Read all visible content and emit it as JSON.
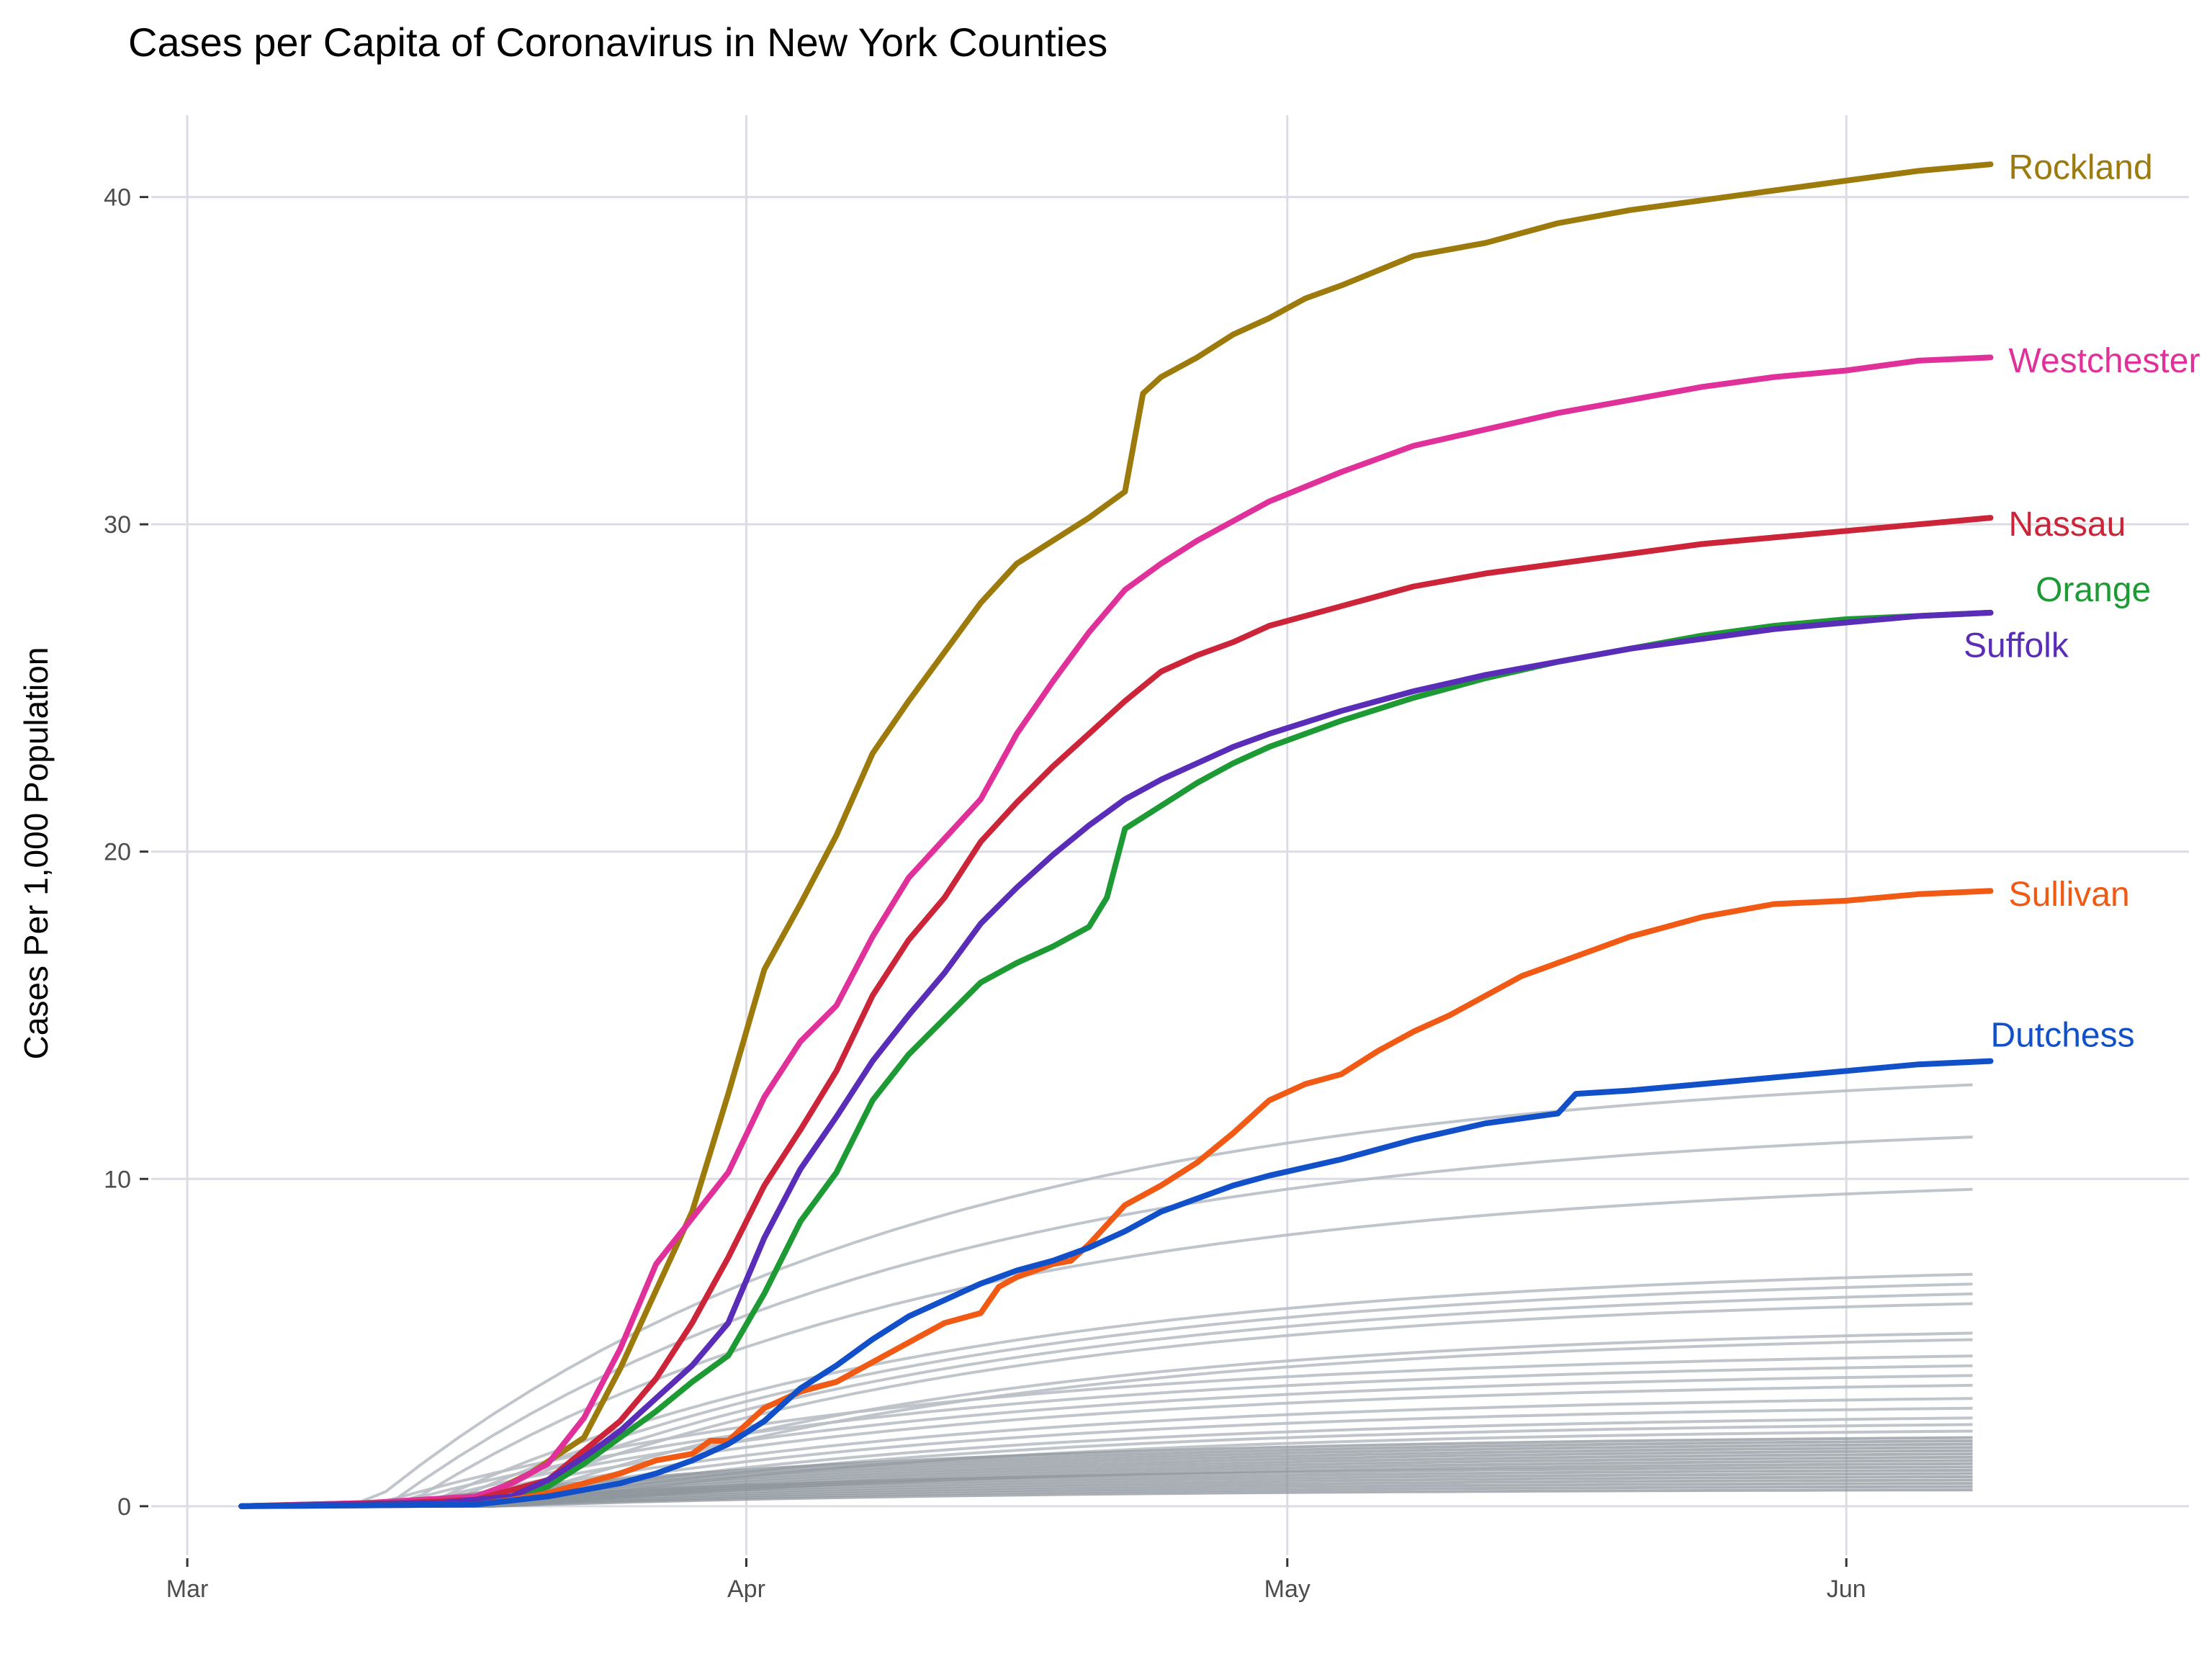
{
  "chart_data": {
    "type": "line",
    "title": "Cases per Capita of Coronavirus in New York Counties",
    "xlabel": "",
    "ylabel": "Cases Per 1,000 Population",
    "x_axis": {
      "type": "day-of-year",
      "range": [
        58,
        171
      ],
      "ticks": [
        {
          "value": 60,
          "label": "Mar"
        },
        {
          "value": 91,
          "label": "Apr"
        },
        {
          "value": 121,
          "label": "May"
        },
        {
          "value": 152,
          "label": "Jun"
        }
      ]
    },
    "ylim": [
      -1.5,
      42.5
    ],
    "y_ticks": [
      0,
      10,
      20,
      30,
      40
    ],
    "grid": true,
    "legend": "none",
    "highlighted_series": [
      {
        "name": "Rockland",
        "color": "#9c7a0c",
        "points": [
          [
            63,
            0
          ],
          [
            70,
            0.1
          ],
          [
            76,
            0.2
          ],
          [
            79,
            1.0
          ],
          [
            82,
            2.1
          ],
          [
            84,
            4.2
          ],
          [
            86,
            6.6
          ],
          [
            88,
            9.0
          ],
          [
            90,
            12.6
          ],
          [
            92,
            16.4
          ],
          [
            94,
            18.4
          ],
          [
            96,
            20.5
          ],
          [
            98,
            23.0
          ],
          [
            100,
            24.6
          ],
          [
            102,
            26.1
          ],
          [
            104,
            27.6
          ],
          [
            106,
            28.8
          ],
          [
            110,
            30.2
          ],
          [
            112,
            31.0
          ],
          [
            113,
            34.0
          ],
          [
            114,
            34.5
          ],
          [
            116,
            35.1
          ],
          [
            118,
            35.8
          ],
          [
            120,
            36.3
          ],
          [
            122,
            36.9
          ],
          [
            124,
            37.3
          ],
          [
            128,
            38.2
          ],
          [
            132,
            38.6
          ],
          [
            136,
            39.2
          ],
          [
            140,
            39.6
          ],
          [
            144,
            39.9
          ],
          [
            148,
            40.2
          ],
          [
            152,
            40.5
          ],
          [
            156,
            40.8
          ],
          [
            160,
            41.0
          ]
        ],
        "label": {
          "text": "Rockland",
          "x": 161,
          "y": 40.9
        }
      },
      {
        "name": "Westchester",
        "color": "#e0319b",
        "points": [
          [
            63,
            0
          ],
          [
            70,
            0.1
          ],
          [
            76,
            0.3
          ],
          [
            78,
            0.7
          ],
          [
            80,
            1.3
          ],
          [
            82,
            2.7
          ],
          [
            84,
            4.8
          ],
          [
            86,
            7.4
          ],
          [
            88,
            8.8
          ],
          [
            90,
            10.2
          ],
          [
            92,
            12.5
          ],
          [
            94,
            14.2
          ],
          [
            96,
            15.3
          ],
          [
            98,
            17.4
          ],
          [
            100,
            19.2
          ],
          [
            102,
            20.4
          ],
          [
            104,
            21.6
          ],
          [
            106,
            23.6
          ],
          [
            108,
            25.2
          ],
          [
            110,
            26.7
          ],
          [
            112,
            28.0
          ],
          [
            114,
            28.8
          ],
          [
            116,
            29.5
          ],
          [
            118,
            30.1
          ],
          [
            120,
            30.7
          ],
          [
            124,
            31.6
          ],
          [
            128,
            32.4
          ],
          [
            132,
            32.9
          ],
          [
            136,
            33.4
          ],
          [
            140,
            33.8
          ],
          [
            144,
            34.2
          ],
          [
            148,
            34.5
          ],
          [
            152,
            34.7
          ],
          [
            156,
            35.0
          ],
          [
            160,
            35.1
          ]
        ],
        "label": {
          "text": "Westchester",
          "x": 161,
          "y": 35.0
        }
      },
      {
        "name": "Nassau",
        "color": "#cc2438",
        "points": [
          [
            63,
            0
          ],
          [
            72,
            0.1
          ],
          [
            76,
            0.2
          ],
          [
            80,
            0.8
          ],
          [
            82,
            1.7
          ],
          [
            84,
            2.6
          ],
          [
            86,
            3.9
          ],
          [
            88,
            5.6
          ],
          [
            90,
            7.6
          ],
          [
            92,
            9.8
          ],
          [
            94,
            11.5
          ],
          [
            96,
            13.3
          ],
          [
            98,
            15.6
          ],
          [
            100,
            17.3
          ],
          [
            102,
            18.6
          ],
          [
            104,
            20.3
          ],
          [
            106,
            21.5
          ],
          [
            108,
            22.6
          ],
          [
            110,
            23.6
          ],
          [
            112,
            24.6
          ],
          [
            114,
            25.5
          ],
          [
            116,
            26.0
          ],
          [
            118,
            26.4
          ],
          [
            120,
            26.9
          ],
          [
            124,
            27.5
          ],
          [
            128,
            28.1
          ],
          [
            132,
            28.5
          ],
          [
            136,
            28.8
          ],
          [
            140,
            29.1
          ],
          [
            144,
            29.4
          ],
          [
            148,
            29.6
          ],
          [
            152,
            29.8
          ],
          [
            156,
            30.0
          ],
          [
            160,
            30.2
          ]
        ],
        "label": {
          "text": "Nassau",
          "x": 161,
          "y": 30.0
        }
      },
      {
        "name": "Orange",
        "color": "#1e9a35",
        "points": [
          [
            63,
            0
          ],
          [
            74,
            0.1
          ],
          [
            78,
            0.2
          ],
          [
            80,
            0.6
          ],
          [
            82,
            1.3
          ],
          [
            84,
            2.1
          ],
          [
            86,
            2.9
          ],
          [
            88,
            3.8
          ],
          [
            90,
            4.6
          ],
          [
            92,
            6.5
          ],
          [
            94,
            8.7
          ],
          [
            96,
            10.2
          ],
          [
            98,
            12.4
          ],
          [
            100,
            13.8
          ],
          [
            102,
            14.9
          ],
          [
            104,
            16.0
          ],
          [
            106,
            16.6
          ],
          [
            108,
            17.1
          ],
          [
            110,
            17.7
          ],
          [
            111,
            18.6
          ],
          [
            112,
            20.7
          ],
          [
            114,
            21.4
          ],
          [
            116,
            22.1
          ],
          [
            118,
            22.7
          ],
          [
            120,
            23.2
          ],
          [
            124,
            24.0
          ],
          [
            128,
            24.7
          ],
          [
            132,
            25.3
          ],
          [
            136,
            25.8
          ],
          [
            140,
            26.2
          ],
          [
            144,
            26.6
          ],
          [
            148,
            26.9
          ],
          [
            152,
            27.1
          ],
          [
            156,
            27.2
          ],
          [
            160,
            27.3
          ]
        ],
        "label": {
          "text": "Orange",
          "x": 162.5,
          "y": 28.0
        }
      },
      {
        "name": "Suffolk",
        "color": "#5a2db8",
        "points": [
          [
            63,
            0
          ],
          [
            74,
            0.1
          ],
          [
            78,
            0.3
          ],
          [
            80,
            0.8
          ],
          [
            82,
            1.5
          ],
          [
            84,
            2.3
          ],
          [
            86,
            3.3
          ],
          [
            88,
            4.3
          ],
          [
            90,
            5.6
          ],
          [
            92,
            8.2
          ],
          [
            94,
            10.3
          ],
          [
            96,
            11.9
          ],
          [
            98,
            13.6
          ],
          [
            100,
            15.0
          ],
          [
            102,
            16.3
          ],
          [
            104,
            17.8
          ],
          [
            106,
            18.9
          ],
          [
            108,
            19.9
          ],
          [
            110,
            20.8
          ],
          [
            112,
            21.6
          ],
          [
            114,
            22.2
          ],
          [
            116,
            22.7
          ],
          [
            118,
            23.2
          ],
          [
            120,
            23.6
          ],
          [
            124,
            24.3
          ],
          [
            128,
            24.9
          ],
          [
            132,
            25.4
          ],
          [
            136,
            25.8
          ],
          [
            140,
            26.2
          ],
          [
            144,
            26.5
          ],
          [
            148,
            26.8
          ],
          [
            152,
            27.0
          ],
          [
            156,
            27.2
          ],
          [
            160,
            27.3
          ]
        ],
        "label": {
          "text": "Suffolk",
          "x": 158.5,
          "y": 26.3
        }
      },
      {
        "name": "Sullivan",
        "color": "#f05a14",
        "points": [
          [
            63,
            0
          ],
          [
            76,
            0.05
          ],
          [
            78,
            0.2
          ],
          [
            80,
            0.4
          ],
          [
            82,
            0.7
          ],
          [
            84,
            1.0
          ],
          [
            86,
            1.4
          ],
          [
            88,
            1.6
          ],
          [
            89,
            2.0
          ],
          [
            90,
            2.0
          ],
          [
            92,
            3.0
          ],
          [
            94,
            3.5
          ],
          [
            96,
            3.8
          ],
          [
            98,
            4.4
          ],
          [
            100,
            5.0
          ],
          [
            102,
            5.6
          ],
          [
            104,
            5.9
          ],
          [
            105,
            6.7
          ],
          [
            106,
            7.0
          ],
          [
            108,
            7.4
          ],
          [
            109,
            7.5
          ],
          [
            110,
            8.0
          ],
          [
            111,
            8.6
          ],
          [
            112,
            9.2
          ],
          [
            114,
            9.8
          ],
          [
            116,
            10.5
          ],
          [
            118,
            11.4
          ],
          [
            120,
            12.4
          ],
          [
            122,
            12.9
          ],
          [
            124,
            13.2
          ],
          [
            126,
            13.9
          ],
          [
            128,
            14.5
          ],
          [
            130,
            15.0
          ],
          [
            132,
            15.6
          ],
          [
            134,
            16.2
          ],
          [
            136,
            16.6
          ],
          [
            138,
            17.0
          ],
          [
            140,
            17.4
          ],
          [
            142,
            17.7
          ],
          [
            144,
            18.0
          ],
          [
            148,
            18.4
          ],
          [
            152,
            18.5
          ],
          [
            156,
            18.7
          ],
          [
            160,
            18.8
          ]
        ],
        "label": {
          "text": "Sullivan",
          "x": 161,
          "y": 18.7
        }
      },
      {
        "name": "Dutchess",
        "color": "#1150c8",
        "points": [
          [
            63,
            0
          ],
          [
            76,
            0.05
          ],
          [
            80,
            0.3
          ],
          [
            84,
            0.7
          ],
          [
            86,
            1.0
          ],
          [
            88,
            1.4
          ],
          [
            90,
            1.9
          ],
          [
            92,
            2.6
          ],
          [
            94,
            3.6
          ],
          [
            96,
            4.3
          ],
          [
            98,
            5.1
          ],
          [
            100,
            5.8
          ],
          [
            102,
            6.3
          ],
          [
            104,
            6.8
          ],
          [
            106,
            7.2
          ],
          [
            108,
            7.5
          ],
          [
            110,
            7.9
          ],
          [
            112,
            8.4
          ],
          [
            114,
            9.0
          ],
          [
            116,
            9.4
          ],
          [
            118,
            9.8
          ],
          [
            120,
            10.1
          ],
          [
            124,
            10.6
          ],
          [
            128,
            11.2
          ],
          [
            132,
            11.7
          ],
          [
            136,
            12.0
          ],
          [
            137,
            12.6
          ],
          [
            140,
            12.7
          ],
          [
            144,
            12.9
          ],
          [
            148,
            13.1
          ],
          [
            152,
            13.3
          ],
          [
            156,
            13.5
          ],
          [
            160,
            13.6
          ]
        ],
        "label": {
          "text": "Dutchess",
          "x": 160,
          "y": 14.4
        }
      }
    ],
    "other_series_final_values": [
      12.9,
      11.3,
      9.7,
      7.1,
      6.8,
      6.5,
      6.2,
      5.3,
      5.1,
      4.6,
      4.3,
      4.0,
      3.7,
      3.3,
      3.0,
      2.7,
      2.5,
      2.3,
      2.1,
      2.0,
      1.9,
      1.8,
      1.7,
      1.6,
      1.5,
      1.4,
      1.3,
      1.2,
      1.1,
      1.0,
      0.9,
      0.8,
      0.7,
      0.6,
      0.5
    ],
    "other_series_color": "#8e959c"
  }
}
